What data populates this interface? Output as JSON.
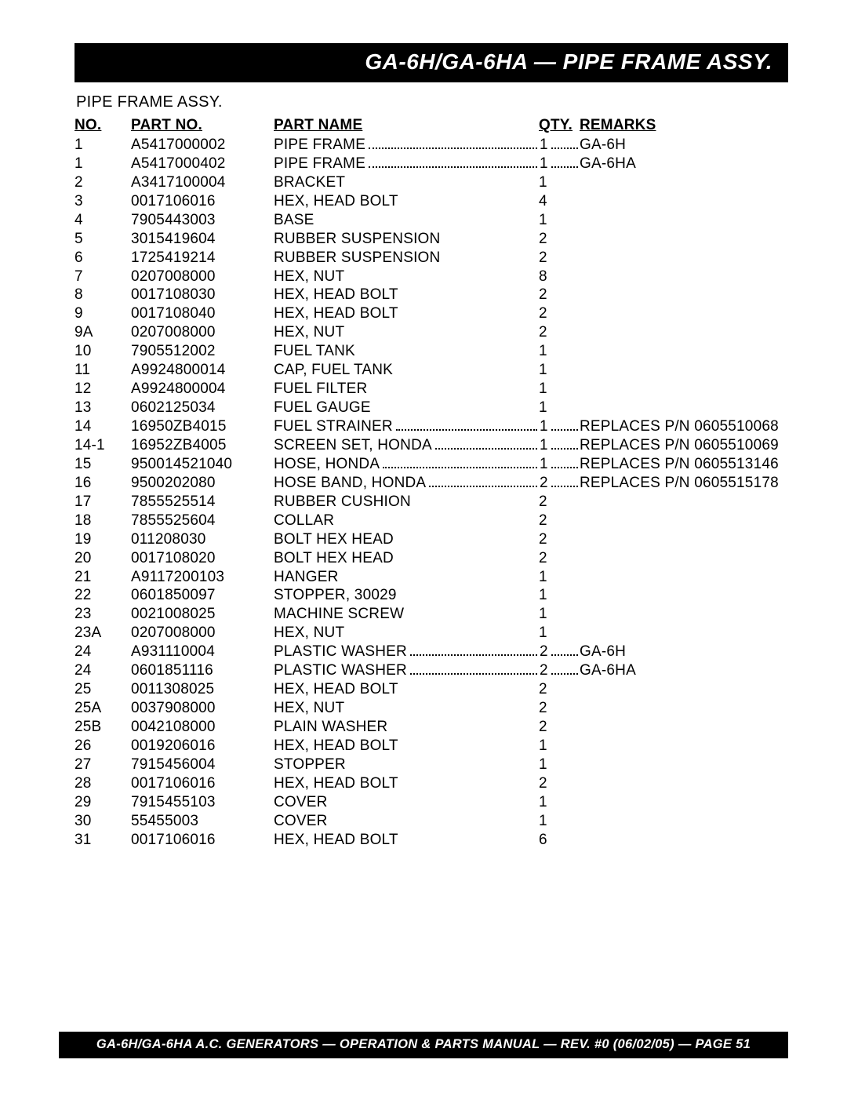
{
  "title": "GA-6H/GA-6HA — PIPE FRAME ASSY.",
  "subtitle": "PIPE FRAME ASSY.",
  "headers": {
    "no": "NO.",
    "partno": "PART NO.",
    "partname": "PART NAME",
    "qty": "QTY.",
    "remarks": "REMARKS"
  },
  "rows": [
    {
      "no": "1",
      "pn": "A5417000002",
      "name": "PIPE FRAME",
      "qty": "1",
      "rem": "GA-6H",
      "dots": true
    },
    {
      "no": "1",
      "pn": "A5417000402",
      "name": "PIPE FRAME",
      "qty": "1",
      "rem": "GA-6HA",
      "dots": true
    },
    {
      "no": "2",
      "pn": "A3417100004",
      "name": "BRACKET",
      "qty": "1",
      "rem": "",
      "dots": false
    },
    {
      "no": "3",
      "pn": "0017106016",
      "name": "HEX, HEAD BOLT",
      "qty": "4",
      "rem": "",
      "dots": false
    },
    {
      "no": "4",
      "pn": "7905443003",
      "name": "BASE",
      "qty": "1",
      "rem": "",
      "dots": false
    },
    {
      "no": "5",
      "pn": "3015419604",
      "name": "RUBBER SUSPENSION",
      "qty": "2",
      "rem": "",
      "dots": false
    },
    {
      "no": "6",
      "pn": "1725419214",
      "name": "RUBBER SUSPENSION",
      "qty": "2",
      "rem": "",
      "dots": false
    },
    {
      "no": "7",
      "pn": "0207008000",
      "name": "HEX, NUT",
      "qty": "8",
      "rem": "",
      "dots": false
    },
    {
      "no": "8",
      "pn": "0017108030",
      "name": "HEX, HEAD BOLT",
      "qty": "2",
      "rem": "",
      "dots": false
    },
    {
      "no": "9",
      "pn": "0017108040",
      "name": "HEX, HEAD BOLT",
      "qty": "2",
      "rem": "",
      "dots": false
    },
    {
      "no": "9A",
      "pn": "0207008000",
      "name": "HEX, NUT",
      "qty": "2",
      "rem": "",
      "dots": false
    },
    {
      "no": "10",
      "pn": "7905512002",
      "name": "FUEL TANK",
      "qty": "1",
      "rem": "",
      "dots": false
    },
    {
      "no": "11",
      "pn": "A9924800014",
      "name": "CAP, FUEL TANK",
      "qty": "1",
      "rem": "",
      "dots": false
    },
    {
      "no": "12",
      "pn": "A9924800004",
      "name": "FUEL FILTER",
      "qty": "1",
      "rem": "",
      "dots": false
    },
    {
      "no": "13",
      "pn": "0602125034",
      "name": "FUEL GAUGE",
      "qty": "1",
      "rem": "",
      "dots": false
    },
    {
      "no": "14",
      "pn": "16950ZB4015",
      "name": "FUEL STRAINER",
      "qty": "1",
      "rem": "REPLACES P/N 0605510068",
      "dots": true
    },
    {
      "no": "14-1",
      "pn": "16952ZB4005",
      "name": "SCREEN SET, HONDA",
      "qty": "1",
      "rem": "REPLACES P/N 0605510069",
      "dots": true
    },
    {
      "no": "15",
      "pn": "950014521040",
      "name": "HOSE, HONDA",
      "qty": "1",
      "rem": "REPLACES P/N 0605513146",
      "dots": true
    },
    {
      "no": "16",
      "pn": "9500202080",
      "name": "HOSE BAND, HONDA",
      "qty": "2",
      "rem": "REPLACES P/N 0605515178",
      "dots": true
    },
    {
      "no": "17",
      "pn": "7855525514",
      "name": "RUBBER CUSHION",
      "qty": "2",
      "rem": "",
      "dots": false
    },
    {
      "no": "18",
      "pn": "7855525604",
      "name": "COLLAR",
      "qty": "2",
      "rem": "",
      "dots": false
    },
    {
      "no": "19",
      "pn": "011208030",
      "name": "BOLT HEX HEAD",
      "qty": "2",
      "rem": "",
      "dots": false
    },
    {
      "no": "20",
      "pn": "0017108020",
      "name": "BOLT HEX HEAD",
      "qty": "2",
      "rem": "",
      "dots": false
    },
    {
      "no": "21",
      "pn": "A9117200103",
      "name": "HANGER",
      "qty": "1",
      "rem": "",
      "dots": false
    },
    {
      "no": "22",
      "pn": "0601850097",
      "name": "STOPPER, 30029",
      "qty": "1",
      "rem": "",
      "dots": false
    },
    {
      "no": "23",
      "pn": "0021008025",
      "name": "MACHINE SCREW",
      "qty": "1",
      "rem": "",
      "dots": false
    },
    {
      "no": "23A",
      "pn": "0207008000",
      "name": "HEX, NUT",
      "qty": "1",
      "rem": "",
      "dots": false
    },
    {
      "no": "24",
      "pn": "A931110004",
      "name": "PLASTIC WASHER",
      "qty": "2",
      "rem": "GA-6H",
      "dots": true
    },
    {
      "no": "24",
      "pn": "0601851116",
      "name": "PLASTIC WASHER",
      "qty": "2",
      "rem": "GA-6HA",
      "dots": true
    },
    {
      "no": "25",
      "pn": "0011308025",
      "name": "HEX, HEAD BOLT",
      "qty": "2",
      "rem": "",
      "dots": false
    },
    {
      "no": "25A",
      "pn": "0037908000",
      "name": "HEX, NUT",
      "qty": "2",
      "rem": "",
      "dots": false
    },
    {
      "no": "25B",
      "pn": "0042108000",
      "name": "PLAIN WASHER",
      "qty": "2",
      "rem": "",
      "dots": false
    },
    {
      "no": "26",
      "pn": "0019206016",
      "name": "HEX, HEAD BOLT",
      "qty": "1",
      "rem": "",
      "dots": false
    },
    {
      "no": "27",
      "pn": "7915456004",
      "name": "STOPPER",
      "qty": "1",
      "rem": "",
      "dots": false
    },
    {
      "no": "28",
      "pn": "0017106016",
      "name": "HEX, HEAD BOLT",
      "qty": "2",
      "rem": "",
      "dots": false
    },
    {
      "no": "29",
      "pn": "7915455103",
      "name": "COVER",
      "qty": "1",
      "rem": "",
      "dots": false
    },
    {
      "no": "30",
      "pn": "55455003",
      "name": "COVER",
      "qty": "1",
      "rem": "",
      "dots": false
    },
    {
      "no": "31",
      "pn": "0017106016",
      "name": "HEX, HEAD BOLT",
      "qty": "6",
      "rem": "",
      "dots": false
    }
  ],
  "footer": "GA-6H/GA-6HA A.C. GENERATORS — OPERATION  & PARTS  MANUAL  — REV. #0  (06/02/05) — PAGE 51"
}
